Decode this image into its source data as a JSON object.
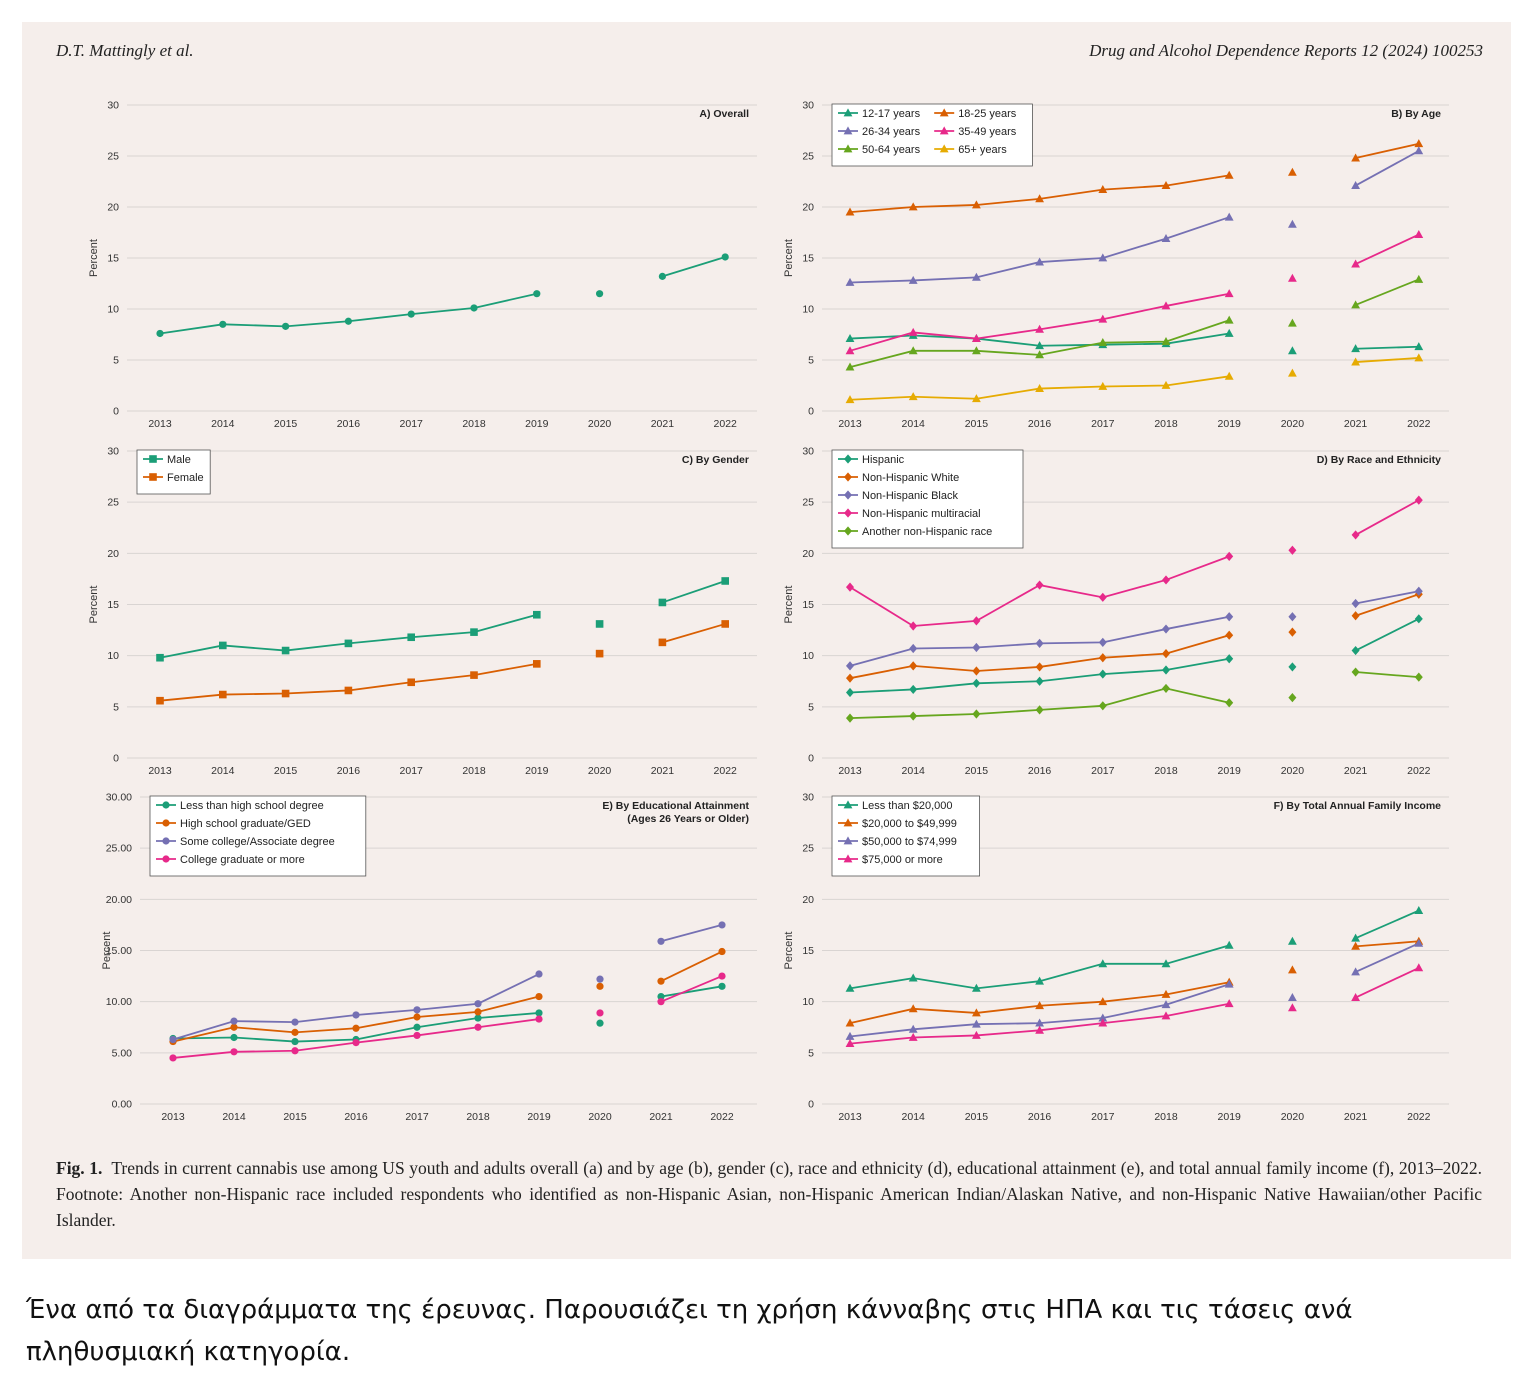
{
  "header": {
    "authors": "D.T. Mattingly et al.",
    "journal": "Drug and Alcohol Dependence Reports 12 (2024) 100253"
  },
  "caption": {
    "label": "Fig. 1.",
    "text": "Trends in current cannabis use among US youth and adults overall (a) and by age (b), gender (c), race and ethnicity (d), educational attainment (e), and total annual family income (f), 2013–2022. Footnote: Another non-Hispanic race included respondents who identified as non-Hispanic Asian, non-Hispanic American Indian/Alaskan Native, and non-Hispanic Native Hawaiian/other Pacific Islander."
  },
  "greek_note": "Ένα από τα διαγράμματα της έρευνας. Παρουσιάζει τη χρήση κάνναβης στις ΗΠΑ και τις τάσεις ανά πληθυσμιακή κατηγορία.",
  "chart_data": [
    {
      "type": "line",
      "title": "A) Overall",
      "ylabel": "Percent",
      "ylim": [
        0,
        30
      ],
      "yticks": [
        "0",
        "5",
        "10",
        "15",
        "20",
        "25",
        "30"
      ],
      "x": [
        "2013",
        "2014",
        "2015",
        "2016",
        "2017",
        "2018",
        "2019",
        "2020",
        "2021",
        "2022"
      ],
      "marker": "circle",
      "legend": "none",
      "series": [
        {
          "color": "#1b9e77",
          "values": [
            7.6,
            8.5,
            8.3,
            8.8,
            9.5,
            10.1,
            11.5,
            11.5,
            13.2,
            15.1
          ]
        }
      ]
    },
    {
      "type": "line",
      "title": "B) By Age",
      "ylabel": "Percent",
      "ylim": [
        0,
        30
      ],
      "yticks": [
        "0",
        "5",
        "10",
        "15",
        "20",
        "25",
        "30"
      ],
      "x": [
        "2013",
        "2014",
        "2015",
        "2016",
        "2017",
        "2018",
        "2019",
        "2020",
        "2021",
        "2022"
      ],
      "marker": "triangle",
      "legend": "top-left",
      "legend_cols": 2,
      "series": [
        {
          "name": "12-17 years",
          "color": "#1b9e77",
          "values": [
            7.1,
            7.4,
            7.1,
            6.4,
            6.5,
            6.6,
            7.6,
            5.9,
            6.1,
            6.3
          ]
        },
        {
          "name": "18-25 years",
          "color": "#d95f02",
          "values": [
            19.5,
            20.0,
            20.2,
            20.8,
            21.7,
            22.1,
            23.1,
            23.4,
            24.8,
            26.2
          ]
        },
        {
          "name": "26-34 years",
          "color": "#7570b3",
          "values": [
            12.6,
            12.8,
            13.1,
            14.6,
            15.0,
            16.9,
            19.0,
            18.3,
            22.1,
            25.5
          ]
        },
        {
          "name": "35-49 years",
          "color": "#e7298a",
          "values": [
            5.9,
            7.7,
            7.1,
            8.0,
            9.0,
            10.3,
            11.5,
            13.0,
            14.4,
            17.3
          ]
        },
        {
          "name": "50-64 years",
          "color": "#66a61e",
          "values": [
            4.3,
            5.9,
            5.9,
            5.5,
            6.7,
            6.8,
            8.9,
            8.6,
            10.4,
            12.9
          ]
        },
        {
          "name": "65+ years",
          "color": "#e6ab02",
          "values": [
            1.1,
            1.4,
            1.2,
            2.2,
            2.4,
            2.5,
            3.4,
            3.7,
            4.8,
            5.2
          ]
        }
      ]
    },
    {
      "type": "line",
      "title": "C) By Gender",
      "ylabel": "Percent",
      "ylim": [
        0,
        30
      ],
      "yticks": [
        "0",
        "5",
        "10",
        "15",
        "20",
        "25",
        "30"
      ],
      "x": [
        "2013",
        "2014",
        "2015",
        "2016",
        "2017",
        "2018",
        "2019",
        "2020",
        "2021",
        "2022"
      ],
      "marker": "square",
      "legend": "top-left",
      "legend_cols": 1,
      "series": [
        {
          "name": "Male",
          "color": "#1b9e77",
          "values": [
            9.8,
            11.0,
            10.5,
            11.2,
            11.8,
            12.3,
            14.0,
            13.1,
            15.2,
            17.3
          ]
        },
        {
          "name": "Female",
          "color": "#d95f02",
          "values": [
            5.6,
            6.2,
            6.3,
            6.6,
            7.4,
            8.1,
            9.2,
            10.2,
            11.3,
            13.1
          ]
        }
      ]
    },
    {
      "type": "line",
      "title": "D) By Race and Ethnicity",
      "ylabel": "Percent",
      "ylim": [
        0,
        30
      ],
      "yticks": [
        "0",
        "5",
        "10",
        "15",
        "20",
        "25",
        "30"
      ],
      "x": [
        "2013",
        "2014",
        "2015",
        "2016",
        "2017",
        "2018",
        "2019",
        "2020",
        "2021",
        "2022"
      ],
      "marker": "diamond",
      "legend": "top-left",
      "legend_cols": 1,
      "series": [
        {
          "name": "Hispanic",
          "color": "#1b9e77",
          "values": [
            6.4,
            6.7,
            7.3,
            7.5,
            8.2,
            8.6,
            9.7,
            8.9,
            10.5,
            13.6
          ]
        },
        {
          "name": "Non-Hispanic White",
          "color": "#d95f02",
          "values": [
            7.8,
            9.0,
            8.5,
            8.9,
            9.8,
            10.2,
            12.0,
            12.3,
            13.9,
            16.0
          ]
        },
        {
          "name": "Non-Hispanic Black",
          "color": "#7570b3",
          "values": [
            9.0,
            10.7,
            10.8,
            11.2,
            11.3,
            12.6,
            13.8,
            13.8,
            15.1,
            16.3
          ]
        },
        {
          "name": "Non-Hispanic multiracial",
          "color": "#e7298a",
          "values": [
            16.7,
            12.9,
            13.4,
            16.9,
            15.7,
            17.4,
            19.7,
            20.3,
            21.8,
            25.2
          ]
        },
        {
          "name": "Another non-Hispanic race",
          "color": "#66a61e",
          "values": [
            3.9,
            4.1,
            4.3,
            4.7,
            5.1,
            6.8,
            5.4,
            5.9,
            8.4,
            7.9
          ]
        }
      ]
    },
    {
      "type": "line",
      "title": "E) By Educational Attainment",
      "subtitle": "(Ages 26 Years or Older)",
      "ylabel": "Percent",
      "ylim": [
        0,
        30
      ],
      "yticks": [
        "0.00",
        "5.00",
        "10.00",
        "15.00",
        "20.00",
        "25.00",
        "30.00"
      ],
      "x": [
        "2013",
        "2014",
        "2015",
        "2016",
        "2017",
        "2018",
        "2019",
        "2020",
        "2021",
        "2022"
      ],
      "marker": "circle",
      "legend": "top-left",
      "legend_cols": 1,
      "series": [
        {
          "name": "Less than high school degree",
          "color": "#1b9e77",
          "values": [
            6.4,
            6.5,
            6.1,
            6.3,
            7.5,
            8.4,
            8.9,
            7.9,
            10.5,
            11.5
          ]
        },
        {
          "name": "High school graduate/GED",
          "color": "#d95f02",
          "values": [
            6.1,
            7.5,
            7.0,
            7.4,
            8.5,
            9.0,
            10.5,
            11.5,
            12.0,
            14.9
          ]
        },
        {
          "name": "Some college/Associate degree",
          "color": "#7570b3",
          "values": [
            6.3,
            8.1,
            8.0,
            8.7,
            9.2,
            9.8,
            12.7,
            12.2,
            15.9,
            17.5
          ]
        },
        {
          "name": "College graduate or more",
          "color": "#e7298a",
          "values": [
            4.5,
            5.1,
            5.2,
            6.0,
            6.7,
            7.5,
            8.3,
            8.9,
            10.0,
            12.5
          ]
        }
      ]
    },
    {
      "type": "line",
      "title": "F) By Total Annual Family Income",
      "ylabel": "Percent",
      "ylim": [
        0,
        30
      ],
      "yticks": [
        "0",
        "5",
        "10",
        "15",
        "20",
        "25",
        "30"
      ],
      "x": [
        "2013",
        "2014",
        "2015",
        "2016",
        "2017",
        "2018",
        "2019",
        "2020",
        "2021",
        "2022"
      ],
      "marker": "triangle",
      "legend": "top-left",
      "legend_cols": 1,
      "series": [
        {
          "name": "Less than $20,000",
          "color": "#1b9e77",
          "values": [
            11.3,
            12.3,
            11.3,
            12.0,
            13.7,
            13.7,
            15.5,
            15.9,
            16.2,
            18.9
          ]
        },
        {
          "name": "$20,000 to $49,999",
          "color": "#d95f02",
          "values": [
            7.9,
            9.3,
            8.9,
            9.6,
            10.0,
            10.7,
            11.9,
            13.1,
            15.4,
            15.9
          ]
        },
        {
          "name": "$50,000 to $74,999",
          "color": "#7570b3",
          "values": [
            6.6,
            7.3,
            7.8,
            7.9,
            8.4,
            9.7,
            11.7,
            10.4,
            12.9,
            15.7
          ]
        },
        {
          "name": "$75,000 or more",
          "color": "#e7298a",
          "values": [
            5.9,
            6.5,
            6.7,
            7.2,
            7.9,
            8.6,
            9.8,
            9.4,
            10.4,
            13.3
          ]
        }
      ]
    }
  ]
}
